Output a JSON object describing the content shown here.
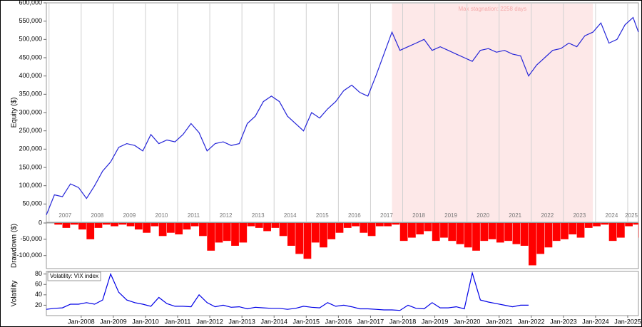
{
  "chart_data": [
    {
      "type": "line",
      "ylabel": "Equity ($)",
      "color": "#2424d8",
      "xlim": [
        "2006-12",
        "2025-05"
      ],
      "x": [
        "2006-12",
        "2007-03",
        "2007-06",
        "2007-09",
        "2007-12",
        "2008-03",
        "2008-06",
        "2008-09",
        "2008-12",
        "2009-03",
        "2009-06",
        "2009-09",
        "2009-12",
        "2010-03",
        "2010-06",
        "2010-09",
        "2010-12",
        "2011-03",
        "2011-06",
        "2011-09",
        "2011-12",
        "2012-03",
        "2012-06",
        "2012-09",
        "2012-12",
        "2013-03",
        "2013-06",
        "2013-09",
        "2013-12",
        "2014-03",
        "2014-06",
        "2014-09",
        "2014-12",
        "2015-03",
        "2015-06",
        "2015-09",
        "2015-12",
        "2016-03",
        "2016-06",
        "2016-09",
        "2016-12",
        "2017-03",
        "2017-06",
        "2017-09",
        "2017-12",
        "2018-03",
        "2018-06",
        "2018-09",
        "2018-12",
        "2019-03",
        "2019-06",
        "2019-09",
        "2019-12",
        "2020-03",
        "2020-06",
        "2020-09",
        "2020-12",
        "2021-03",
        "2021-06",
        "2021-09",
        "2021-12",
        "2022-03",
        "2022-06",
        "2022-09",
        "2022-12",
        "2023-03",
        "2023-06",
        "2023-09",
        "2023-12",
        "2024-03",
        "2024-06",
        "2024-09",
        "2024-12",
        "2025-03",
        "2025-05"
      ],
      "values": [
        20000,
        75000,
        70000,
        105000,
        95000,
        65000,
        100000,
        140000,
        165000,
        205000,
        215000,
        210000,
        195000,
        240000,
        215000,
        225000,
        220000,
        240000,
        270000,
        245000,
        195000,
        215000,
        220000,
        210000,
        215000,
        270000,
        290000,
        330000,
        345000,
        330000,
        290000,
        270000,
        250000,
        300000,
        285000,
        310000,
        330000,
        360000,
        375000,
        355000,
        345000,
        400000,
        460000,
        520000,
        470000,
        480000,
        490000,
        500000,
        470000,
        480000,
        470000,
        460000,
        450000,
        440000,
        470000,
        475000,
        465000,
        470000,
        460000,
        455000,
        400000,
        430000,
        450000,
        470000,
        475000,
        490000,
        480000,
        510000,
        520000,
        545000,
        490000,
        500000,
        540000,
        560000,
        520000
      ],
      "ylim": [
        0,
        600000
      ],
      "yticks": [
        {
          "value": 50000,
          "label": "50,000"
        },
        {
          "value": 100000,
          "label": "100,000"
        },
        {
          "value": 150000,
          "label": "150,000"
        },
        {
          "value": 200000,
          "label": "200,000"
        },
        {
          "value": 250000,
          "label": "250,000"
        },
        {
          "value": 300000,
          "label": "300,000"
        },
        {
          "value": 350000,
          "label": "350,000"
        },
        {
          "value": 400000,
          "label": "400,000"
        },
        {
          "value": 450000,
          "label": "450,000"
        },
        {
          "value": 500000,
          "label": "500,000"
        },
        {
          "value": 550000,
          "label": "550,000"
        },
        {
          "value": 600000,
          "label": "600,000"
        }
      ],
      "xticks": [
        "2007",
        "2008",
        "2009",
        "2010",
        "2011",
        "2012",
        "2013",
        "2014",
        "2015",
        "2016",
        "2017",
        "2018",
        "2019",
        "2020",
        "2021",
        "2022",
        "2023",
        "2024",
        "2025"
      ],
      "stagnation": {
        "text": "Max stagnation: 2258 days",
        "span": [
          "2017-09",
          "2023-12"
        ],
        "color": "#fde8e8"
      }
    },
    {
      "type": "bar",
      "ylabel": "Drawdown ($)",
      "color": "#ff0000",
      "xlim": [
        "2006-12",
        "2025-05"
      ],
      "x": [
        "2006-12",
        "2007-03",
        "2007-06",
        "2007-09",
        "2007-12",
        "2008-03",
        "2008-06",
        "2008-09",
        "2008-12",
        "2009-03",
        "2009-06",
        "2009-09",
        "2009-12",
        "2010-03",
        "2010-06",
        "2010-09",
        "2010-12",
        "2011-03",
        "2011-06",
        "2011-09",
        "2011-12",
        "2012-03",
        "2012-06",
        "2012-09",
        "2012-12",
        "2013-03",
        "2013-06",
        "2013-09",
        "2013-12",
        "2014-03",
        "2014-06",
        "2014-09",
        "2014-12",
        "2015-03",
        "2015-06",
        "2015-09",
        "2015-12",
        "2016-03",
        "2016-06",
        "2016-09",
        "2016-12",
        "2017-03",
        "2017-06",
        "2017-09",
        "2017-12",
        "2018-03",
        "2018-06",
        "2018-09",
        "2018-12",
        "2019-03",
        "2019-06",
        "2019-09",
        "2019-12",
        "2020-03",
        "2020-06",
        "2020-09",
        "2020-12",
        "2021-03",
        "2021-06",
        "2021-09",
        "2021-12",
        "2022-03",
        "2022-06",
        "2022-09",
        "2022-12",
        "2023-03",
        "2023-06",
        "2023-09",
        "2023-12",
        "2024-03",
        "2024-06",
        "2024-09",
        "2024-12",
        "2025-03",
        "2025-05"
      ],
      "values": [
        0,
        -5000,
        -15000,
        -5000,
        -20000,
        -50000,
        -15000,
        -5000,
        -10000,
        -5000,
        -10000,
        -20000,
        -30000,
        -10000,
        -40000,
        -30000,
        -35000,
        -20000,
        -10000,
        -40000,
        -85000,
        -60000,
        -55000,
        -70000,
        -60000,
        -10000,
        -15000,
        -25000,
        -15000,
        -40000,
        -70000,
        -95000,
        -110000,
        -60000,
        -75000,
        -50000,
        -30000,
        -15000,
        -10000,
        -30000,
        -40000,
        -10000,
        -10000,
        -5000,
        -55000,
        -45000,
        -35000,
        -25000,
        -55000,
        -45000,
        -55000,
        -65000,
        -75000,
        -85000,
        -55000,
        -50000,
        -60000,
        -55000,
        -65000,
        -70000,
        -130000,
        -95000,
        -75000,
        -55000,
        -50000,
        -35000,
        -45000,
        -15000,
        -10000,
        -5000,
        -55000,
        -45000,
        -10000,
        -5000,
        -45000
      ],
      "ylim": [
        -140000,
        0
      ],
      "yticks": [
        {
          "value": -100000,
          "label": "-100,000"
        },
        {
          "value": -50000,
          "label": "-50,000"
        },
        0
      ]
    },
    {
      "type": "line",
      "title": "Volatility: VIX index",
      "ylabel": "Volatility",
      "color": "#0000e6",
      "xlim": [
        "2006-12",
        "2025-05"
      ],
      "x": [
        "2006-12",
        "2007-03",
        "2007-06",
        "2007-09",
        "2007-12",
        "2008-03",
        "2008-06",
        "2008-09",
        "2008-12",
        "2009-03",
        "2009-06",
        "2009-09",
        "2009-12",
        "2010-03",
        "2010-06",
        "2010-09",
        "2010-12",
        "2011-03",
        "2011-06",
        "2011-09",
        "2011-12",
        "2012-03",
        "2012-06",
        "2012-09",
        "2012-12",
        "2013-03",
        "2013-06",
        "2013-09",
        "2013-12",
        "2014-03",
        "2014-06",
        "2014-09",
        "2014-12",
        "2015-03",
        "2015-06",
        "2015-09",
        "2015-12",
        "2016-03",
        "2016-06",
        "2016-09",
        "2016-12",
        "2017-03",
        "2017-06",
        "2017-09",
        "2017-12",
        "2018-03",
        "2018-06",
        "2018-09",
        "2018-12",
        "2019-03",
        "2019-06",
        "2019-09",
        "2019-12",
        "2020-03",
        "2020-06",
        "2020-09",
        "2020-12",
        "2021-03",
        "2021-06",
        "2021-09",
        "2021-12"
      ],
      "values": [
        12,
        14,
        15,
        22,
        22,
        25,
        22,
        30,
        80,
        45,
        30,
        25,
        22,
        18,
        35,
        23,
        18,
        18,
        17,
        40,
        25,
        17,
        20,
        16,
        17,
        13,
        16,
        15,
        14,
        14,
        12,
        14,
        18,
        16,
        15,
        25,
        18,
        20,
        17,
        13,
        13,
        12,
        11,
        11,
        10,
        20,
        14,
        13,
        25,
        15,
        15,
        17,
        13,
        82,
        30,
        26,
        23,
        20,
        17,
        20,
        20
      ],
      "ylim": [
        0,
        85
      ],
      "yticks": [
        20,
        40,
        60,
        80
      ],
      "xticks": [
        {
          "value": "2008-01",
          "label": "Jan-2008"
        },
        {
          "value": "2009-01",
          "label": "Jan-2009"
        },
        {
          "value": "2010-01",
          "label": "Jan-2010"
        },
        {
          "value": "2011-01",
          "label": "Jan-2011"
        },
        {
          "value": "2012-01",
          "label": "Jan-2012"
        },
        {
          "value": "2013-01",
          "label": "Jan-2013"
        },
        {
          "value": "2014-01",
          "label": "Jan-2014"
        },
        {
          "value": "2015-01",
          "label": "Jan-2015"
        },
        {
          "value": "2016-01",
          "label": "Jan-2016"
        },
        {
          "value": "2017-01",
          "label": "Jan-2017"
        },
        {
          "value": "2018-01",
          "label": "Jan-2018"
        },
        {
          "value": "2019-01",
          "label": "Jan-2019"
        },
        {
          "value": "2020-01",
          "label": "Jan-2020"
        },
        {
          "value": "2021-01",
          "label": "Jan-2021"
        },
        {
          "value": "2022-01",
          "label": "Jan-2022"
        },
        {
          "value": "2023-01",
          "label": "Jan-2023"
        },
        {
          "value": "2024-01",
          "label": "Jan-2024"
        },
        {
          "value": "2025-01",
          "label": "Jan-2025"
        }
      ]
    }
  ]
}
